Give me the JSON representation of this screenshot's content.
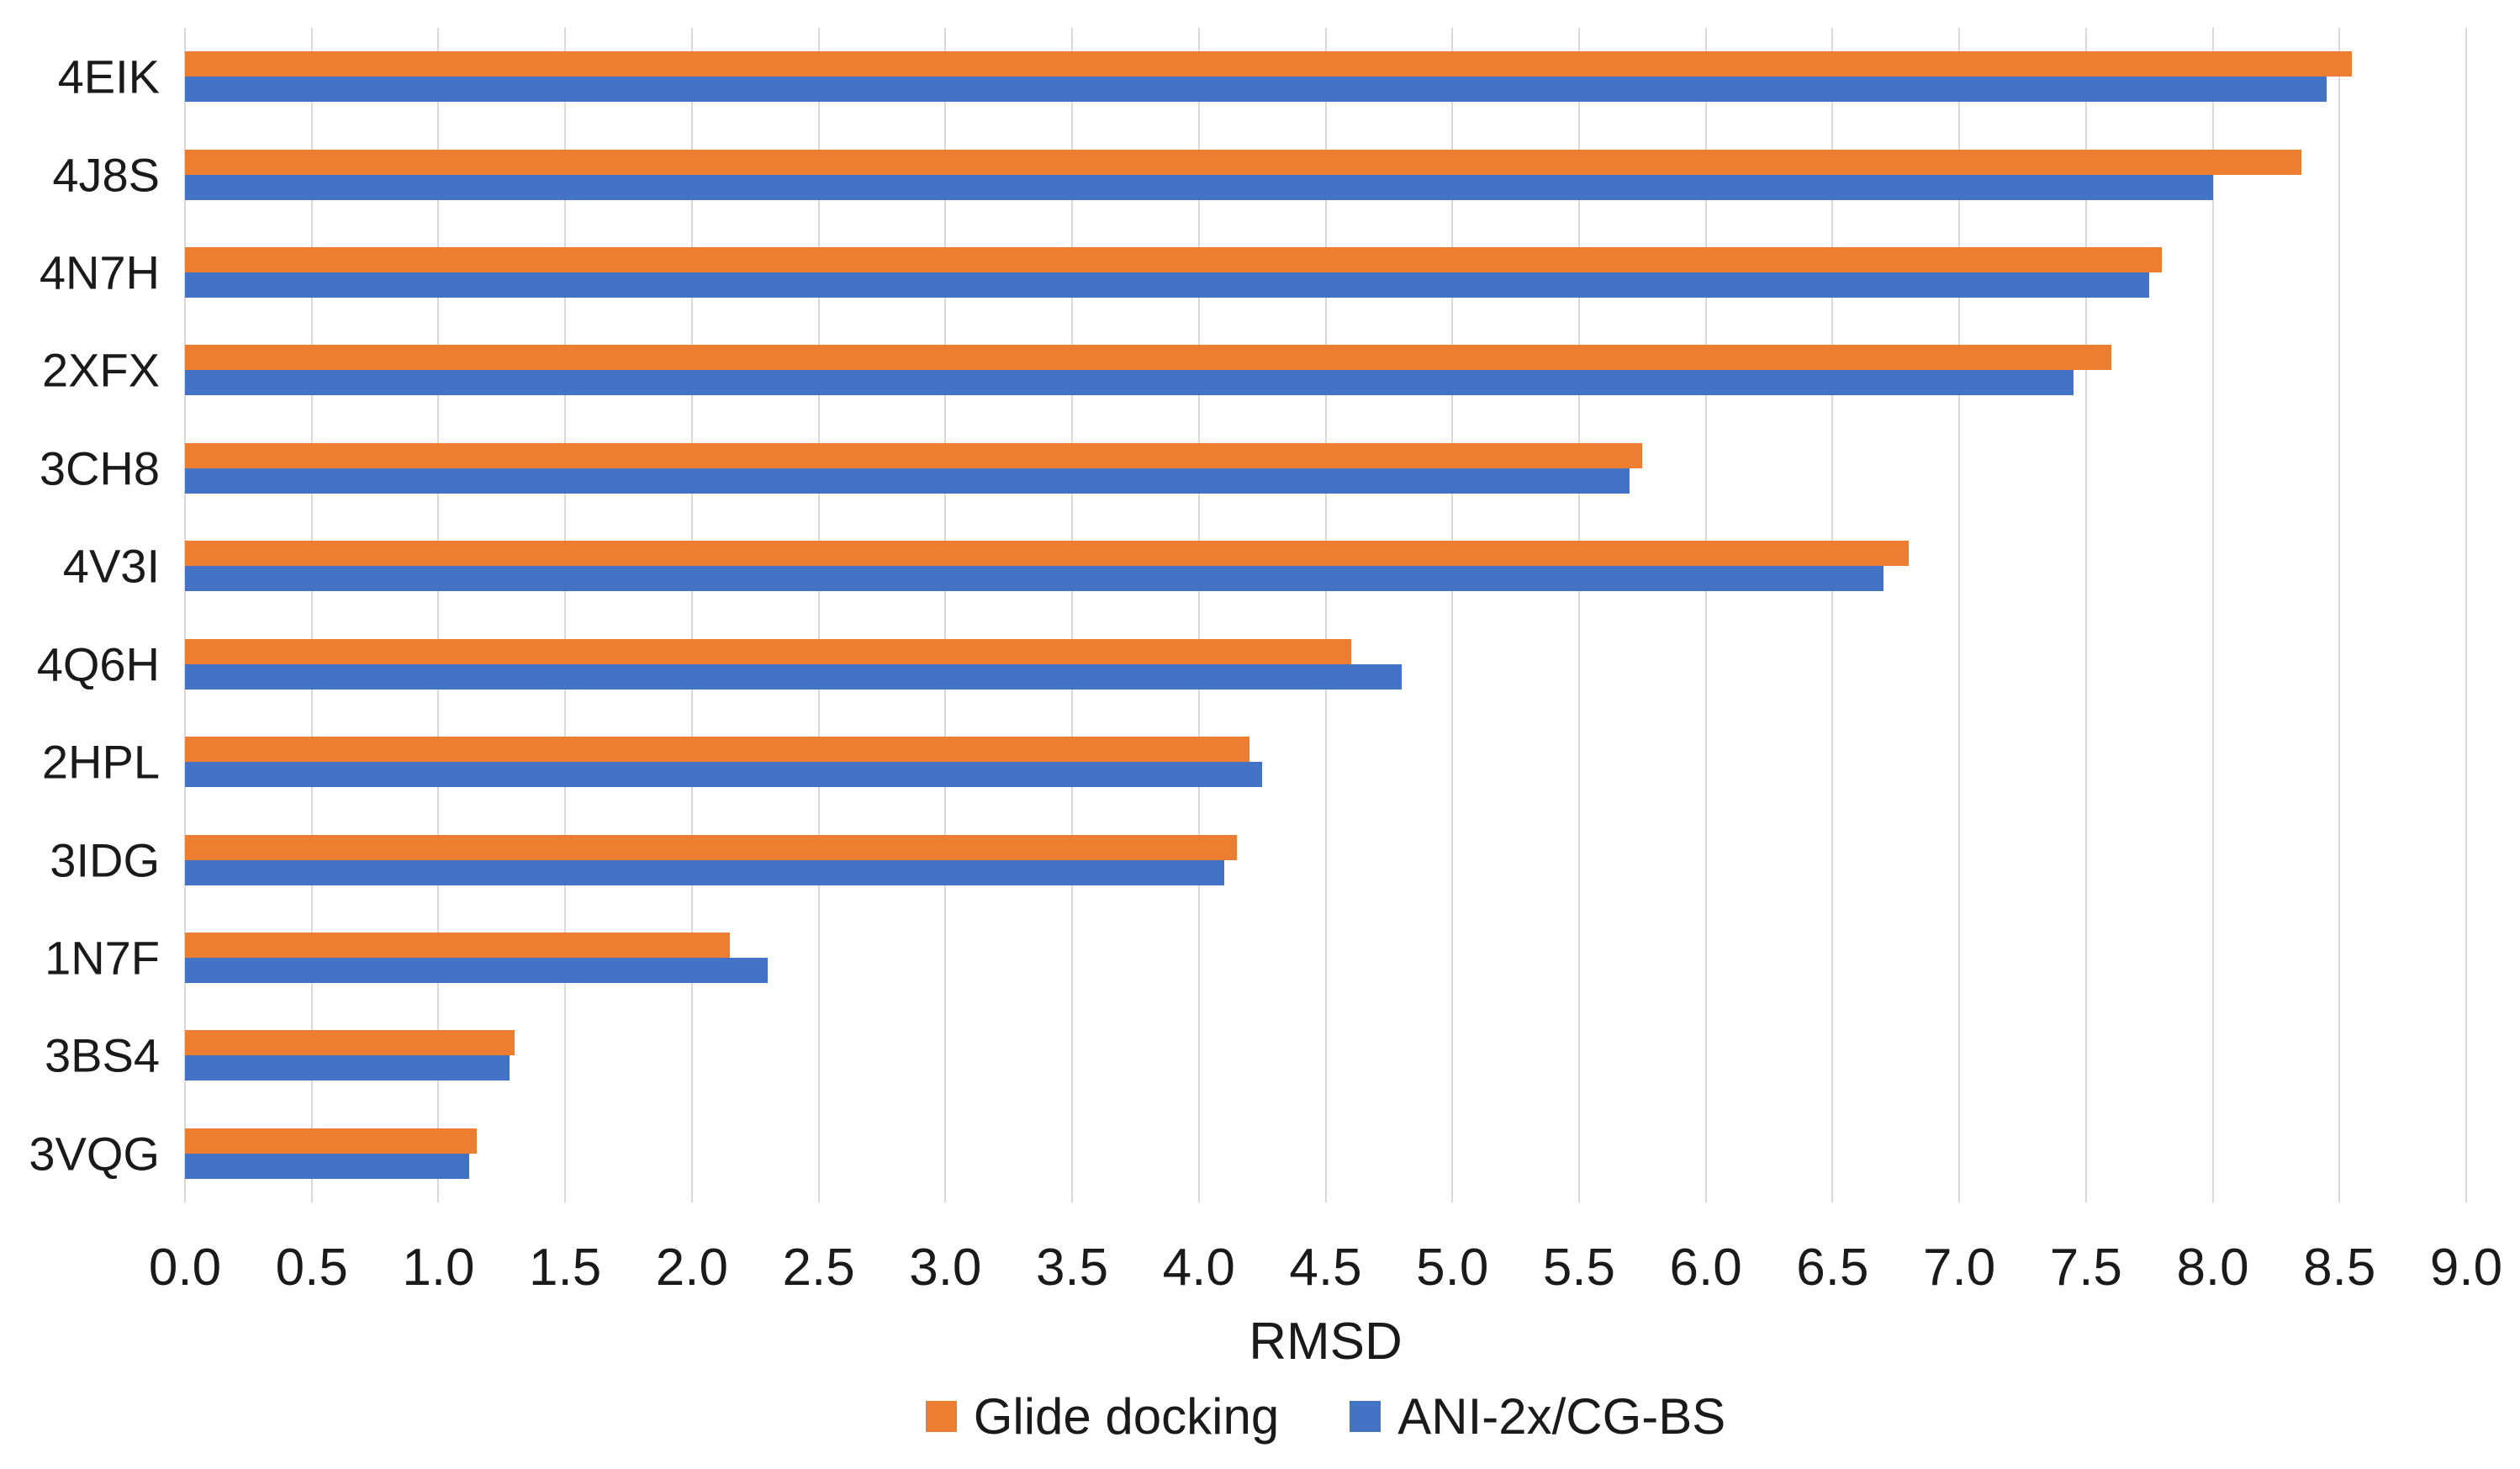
{
  "chart_data": {
    "type": "bar",
    "orientation": "horizontal",
    "title": "",
    "xlabel": "RMSD",
    "ylabel": "",
    "categories": [
      "4EIK",
      "4J8S",
      "4N7H",
      "2XFX",
      "3CH8",
      "4V3I",
      "4Q6H",
      "2HPL",
      "3IDG",
      "1N7F",
      "3BS4",
      "3VQG"
    ],
    "series": [
      {
        "name": "Glide docking",
        "color": "#ED7D31",
        "values": [
          8.55,
          8.35,
          7.8,
          7.6,
          5.75,
          6.8,
          4.6,
          4.2,
          4.15,
          2.15,
          1.3,
          1.15
        ]
      },
      {
        "name": "ANI-2x/CG-BS",
        "color": "#4472C4",
        "values": [
          8.45,
          8.0,
          7.75,
          7.45,
          5.7,
          6.7,
          4.8,
          4.25,
          4.1,
          2.3,
          1.28,
          1.12
        ]
      }
    ],
    "xlim": [
      0,
      9
    ],
    "xticks": [
      "0.0",
      "0.5",
      "1.0",
      "1.5",
      "2.0",
      "2.5",
      "3.0",
      "3.5",
      "4.0",
      "4.5",
      "5.0",
      "5.5",
      "6.0",
      "6.5",
      "7.0",
      "7.5",
      "8.0",
      "8.5",
      "9.0"
    ],
    "grid": "vertical-only",
    "gridline_color": "#d9d9d9",
    "legend_position": "bottom"
  }
}
